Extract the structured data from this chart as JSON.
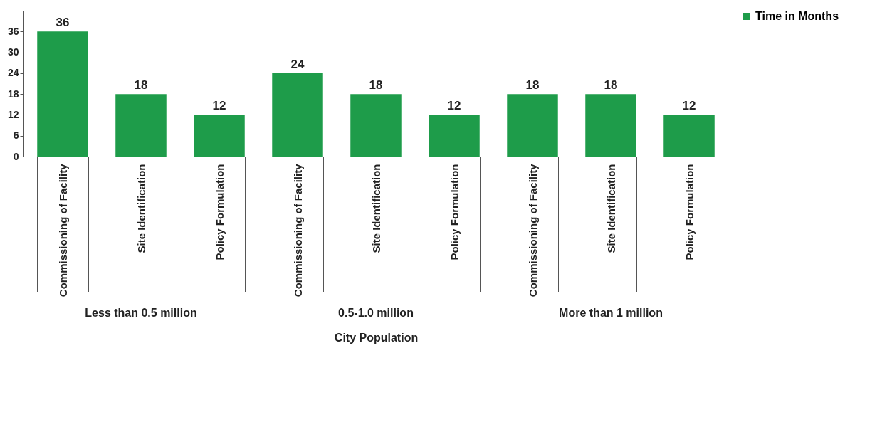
{
  "chart_data": {
    "type": "bar",
    "xlabel": "City Population",
    "categories": [
      "Commissioning of Facility",
      "Site Identification",
      "Policy Formulation",
      "Commissioning of Facility",
      "Site Identification",
      "Policy Formulation",
      "Commissioning of Facility",
      "Site Identification",
      "Policy Formulation"
    ],
    "series": [
      {
        "name": "Time in Months",
        "color": "#1e9c4a",
        "values": [
          36,
          18,
          12,
          24,
          18,
          12,
          18,
          18,
          12
        ]
      }
    ],
    "ylim": [
      0,
      42
    ],
    "yticks": [
      0,
      6,
      12,
      18,
      24,
      30,
      36
    ],
    "grid": false,
    "legend": "right",
    "data_labels": true,
    "annotations": [
      "Less than 0.5 million",
      "0.5-1.0 million",
      "More than 1 million"
    ]
  }
}
